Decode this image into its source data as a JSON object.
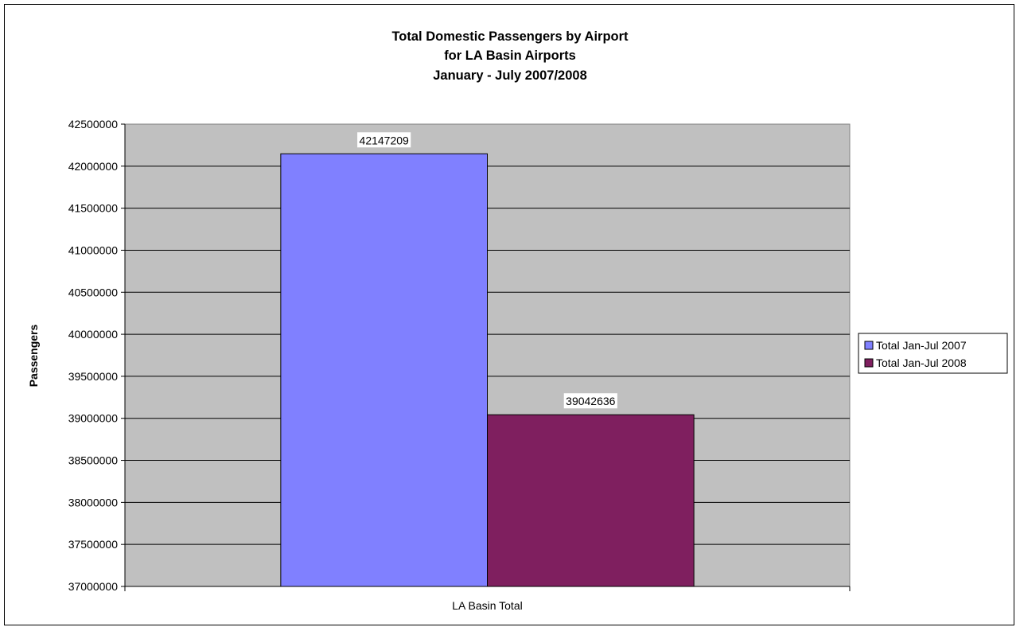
{
  "chart_data": {
    "type": "bar",
    "title_lines": [
      "Total Domestic Passengers by Airport",
      "for LA Basin Airports",
      "January - July 2007/2008"
    ],
    "xlabel": "",
    "ylabel": "Passengers",
    "categories": [
      "LA Basin Total"
    ],
    "series": [
      {
        "name": "Total Jan-Jul 2007",
        "values": [
          42147209
        ],
        "color": "#8080ff"
      },
      {
        "name": "Total Jan-Jul 2008",
        "values": [
          39042636
        ],
        "color": "#7f1f5f"
      }
    ],
    "ylim": [
      37000000,
      42500000
    ],
    "yticks": [
      37000000,
      37500000,
      38000000,
      38500000,
      39000000,
      39500000,
      40000000,
      40500000,
      41000000,
      41500000,
      42000000,
      42500000
    ],
    "grid": true,
    "plot_background": "#c0c0c0",
    "legend_position": "right",
    "data_labels": true
  }
}
